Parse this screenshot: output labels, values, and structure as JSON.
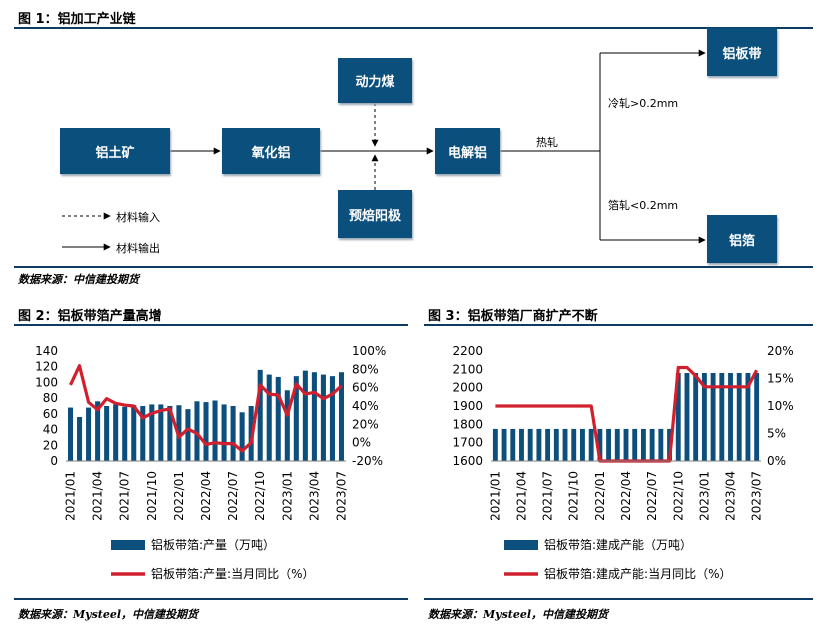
{
  "figures": {
    "fig1": {
      "title": "图 1：铝加工产业链",
      "source": "数据来源：中信建投期货",
      "nodes": {
        "bauxite": "铝土矿",
        "alumina": "氧化铝",
        "power_coal": "动力煤",
        "prebaked_anode": "预焙阳极",
        "electrolytic_al": "电解铝",
        "al_strip": "铝板带",
        "al_foil": "铝箔"
      },
      "edge_labels": {
        "hot_rolling": "热轧",
        "cold_rolling": "冷轧>0.2mm",
        "foil_rolling": "箔轧<0.2mm"
      },
      "legend": {
        "input": "材料输入",
        "output": "材料输出"
      }
    },
    "fig2": {
      "title": "图 2：铝板带箔产量高增",
      "source": "数据来源：Mysteel，中信建投期货"
    },
    "fig3": {
      "title": "图 3：铝板带箔厂商扩产不断",
      "source": "数据来源：Mysteel，中信建投期货"
    }
  },
  "colors": {
    "bar": "#0d4f7c",
    "line": "#d0202e",
    "box": "#0b4f7c",
    "rule": "#0d3b66"
  },
  "chart_data": [
    {
      "type": "bar",
      "id": "production",
      "title": "图 2：铝板带箔产量高增",
      "categories": [
        "2021/01",
        "2021/02",
        "2021/03",
        "2021/04",
        "2021/05",
        "2021/06",
        "2021/07",
        "2021/08",
        "2021/09",
        "2021/10",
        "2021/11",
        "2021/12",
        "2022/01",
        "2022/02",
        "2022/03",
        "2022/04",
        "2022/05",
        "2022/06",
        "2022/07",
        "2022/08",
        "2022/09",
        "2022/10",
        "2022/11",
        "2022/12",
        "2023/01",
        "2023/02",
        "2023/03",
        "2023/04",
        "2023/05",
        "2023/06",
        "2023/07"
      ],
      "tick_labels": [
        "2021/01",
        "2021/04",
        "2021/07",
        "2021/10",
        "2022/01",
        "2022/04",
        "2022/07",
        "2022/10",
        "2023/01",
        "2023/04",
        "2023/07"
      ],
      "series": [
        {
          "name": "铝板带箔:产量（万吨）",
          "type": "bar",
          "axis": "left",
          "values": [
            68,
            56,
            68,
            76,
            70,
            72,
            69,
            71,
            70,
            72,
            72,
            70,
            71,
            66,
            76,
            75,
            77,
            72,
            70,
            62,
            70,
            116,
            110,
            107,
            90,
            108,
            115,
            113,
            110,
            108,
            113
          ]
        },
        {
          "name": "铝板带箔:产量:当月同比（%）",
          "type": "line",
          "axis": "right",
          "values": [
            63,
            84,
            44,
            36,
            48,
            43,
            41,
            40,
            27,
            32,
            35,
            37,
            6,
            15,
            10,
            -2,
            0,
            -1,
            -1,
            -9,
            0,
            63,
            53,
            52,
            30,
            64,
            53,
            55,
            48,
            53,
            62
          ]
        }
      ],
      "y_left": {
        "min": 0,
        "max": 140,
        "step": 20,
        "ticks": [
          "0",
          "20",
          "40",
          "60",
          "80",
          "100",
          "120",
          "140"
        ]
      },
      "y_right": {
        "min": -20,
        "max": 100,
        "step": 20,
        "ticks": [
          "-20%",
          "0%",
          "20%",
          "40%",
          "60%",
          "80%",
          "100%"
        ]
      }
    },
    {
      "type": "bar",
      "id": "capacity",
      "title": "图 3：铝板带箔厂商扩产不断",
      "categories": [
        "2021/01",
        "2021/02",
        "2021/03",
        "2021/04",
        "2021/05",
        "2021/06",
        "2021/07",
        "2021/08",
        "2021/09",
        "2021/10",
        "2021/11",
        "2021/12",
        "2022/01",
        "2022/02",
        "2022/03",
        "2022/04",
        "2022/05",
        "2022/06",
        "2022/07",
        "2022/08",
        "2022/09",
        "2022/10",
        "2022/11",
        "2022/12",
        "2023/01",
        "2023/02",
        "2023/03",
        "2023/04",
        "2023/05",
        "2023/06",
        "2023/07"
      ],
      "tick_labels": [
        "2021/01",
        "2021/04",
        "2021/07",
        "2021/10",
        "2022/01",
        "2022/04",
        "2022/07",
        "2022/10",
        "2023/01",
        "2023/04",
        "2023/07"
      ],
      "series": [
        {
          "name": "铝板带箔:建成产能（万吨）",
          "type": "bar",
          "axis": "left",
          "values": [
            1775,
            1775,
            1775,
            1775,
            1775,
            1775,
            1775,
            1775,
            1775,
            1775,
            1775,
            1775,
            1775,
            1775,
            1775,
            1775,
            1775,
            1775,
            1775,
            1775,
            1775,
            2080,
            2080,
            2080,
            2080,
            2080,
            2080,
            2080,
            2080,
            2080,
            2080
          ]
        },
        {
          "name": "铝板带箔:建成产能:当月同比（%）",
          "type": "line",
          "axis": "right",
          "values": [
            10,
            10,
            10,
            10,
            10,
            10,
            10,
            10,
            10,
            10,
            10,
            10,
            0,
            0,
            0,
            0,
            0,
            0,
            0,
            0,
            0,
            17,
            17,
            15.5,
            13.5,
            13.5,
            13.5,
            13.5,
            13.5,
            13.5,
            16.5
          ]
        }
      ],
      "y_left": {
        "min": 1600,
        "max": 2200,
        "step": 100,
        "ticks": [
          "1600",
          "1700",
          "1800",
          "1900",
          "2000",
          "2100",
          "2200"
        ]
      },
      "y_right": {
        "min": 0,
        "max": 20,
        "step": 5,
        "ticks": [
          "0%",
          "5%",
          "10%",
          "15%",
          "20%"
        ]
      }
    }
  ]
}
